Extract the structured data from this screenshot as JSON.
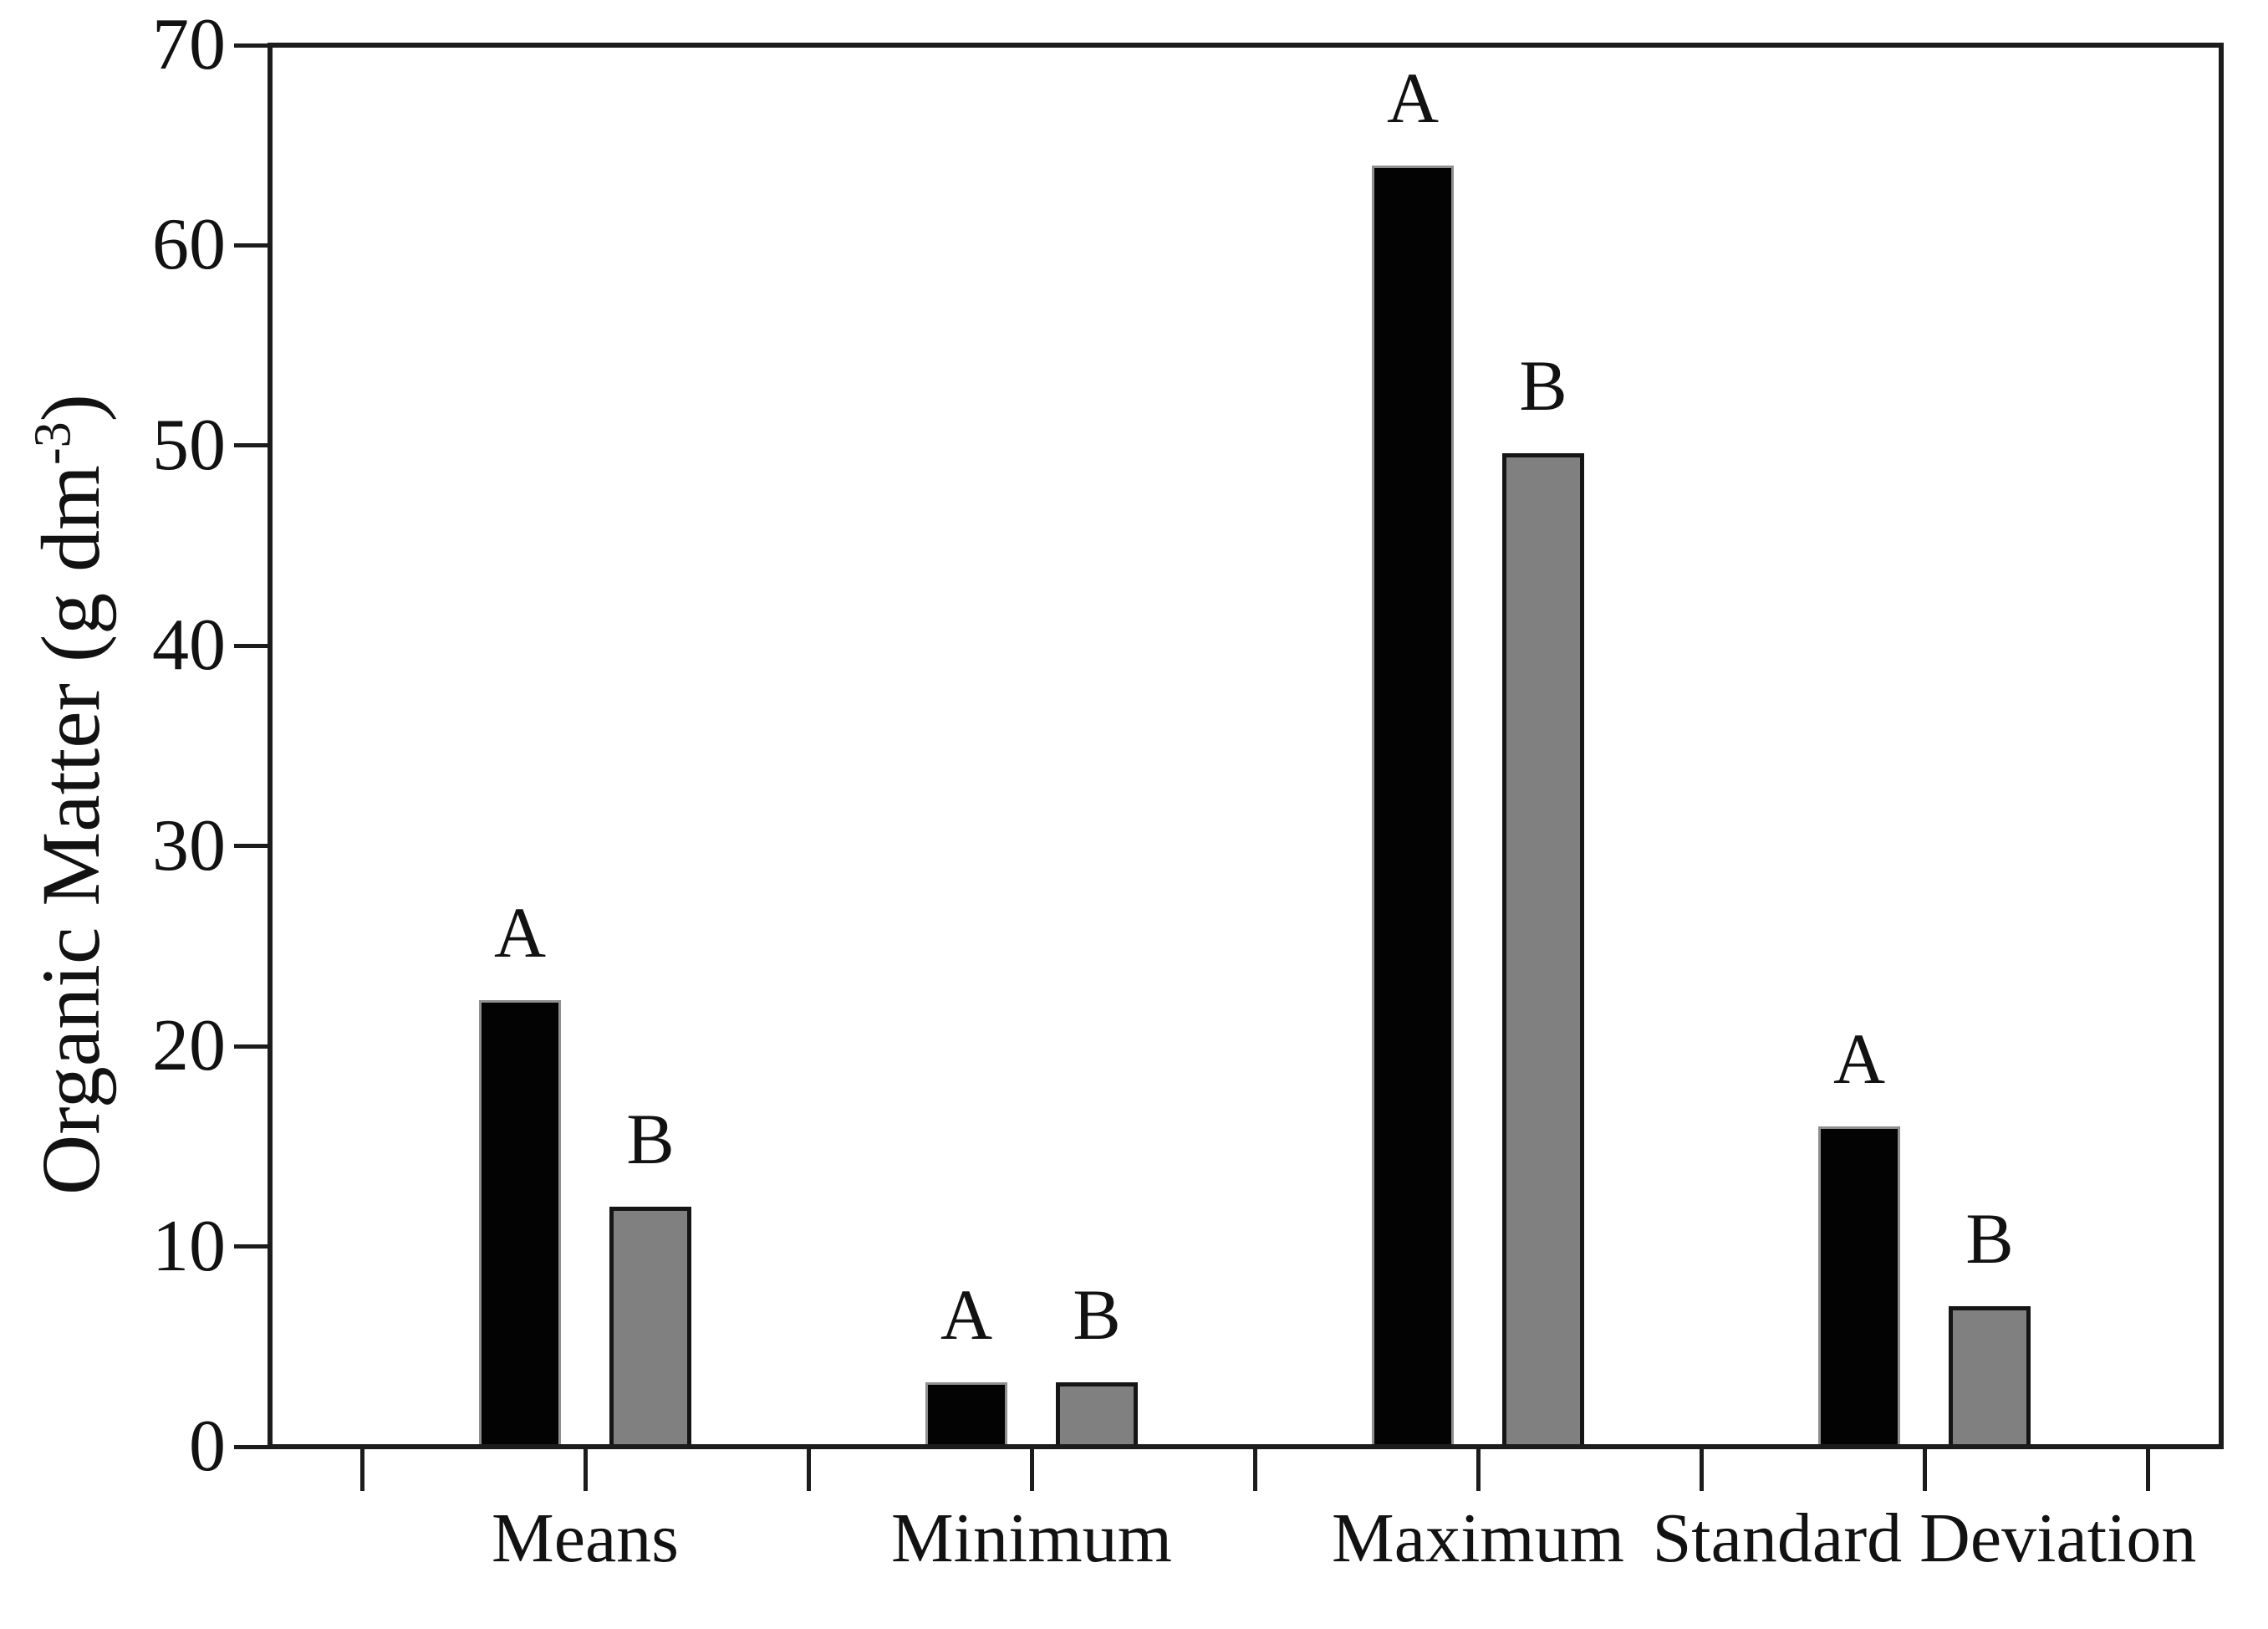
{
  "chart_data": {
    "type": "bar",
    "title": "",
    "categories": [
      "Means",
      "Minimum",
      "Maximum",
      "Standard Deviation"
    ],
    "series": [
      {
        "name": "A",
        "fill": "#030303",
        "border": "#8f8f8f",
        "values": [
          22.3,
          3.2,
          64.0,
          16.0
        ]
      },
      {
        "name": "B",
        "fill": "#808080",
        "border": "#151515",
        "values": [
          12.0,
          3.2,
          49.6,
          7.0
        ]
      }
    ],
    "bar_top_labels": [
      [
        "A",
        "B"
      ],
      [
        "A",
        "B"
      ],
      [
        "A",
        "B"
      ],
      [
        "A",
        "B"
      ]
    ],
    "ylabel": "Organic Matter (g dm-3)",
    "ylabel_parts": {
      "main": "Organic Matter (g dm",
      "sup": "-3",
      "close": ")"
    },
    "xlabel": "",
    "yticks": [
      0,
      10,
      20,
      30,
      40,
      50,
      60,
      70
    ],
    "ylim": [
      0,
      70
    ],
    "grid": false,
    "framed_plot": true,
    "legend_position": "none",
    "axis_color": "#1c1c1c",
    "background": "#ffffff"
  }
}
